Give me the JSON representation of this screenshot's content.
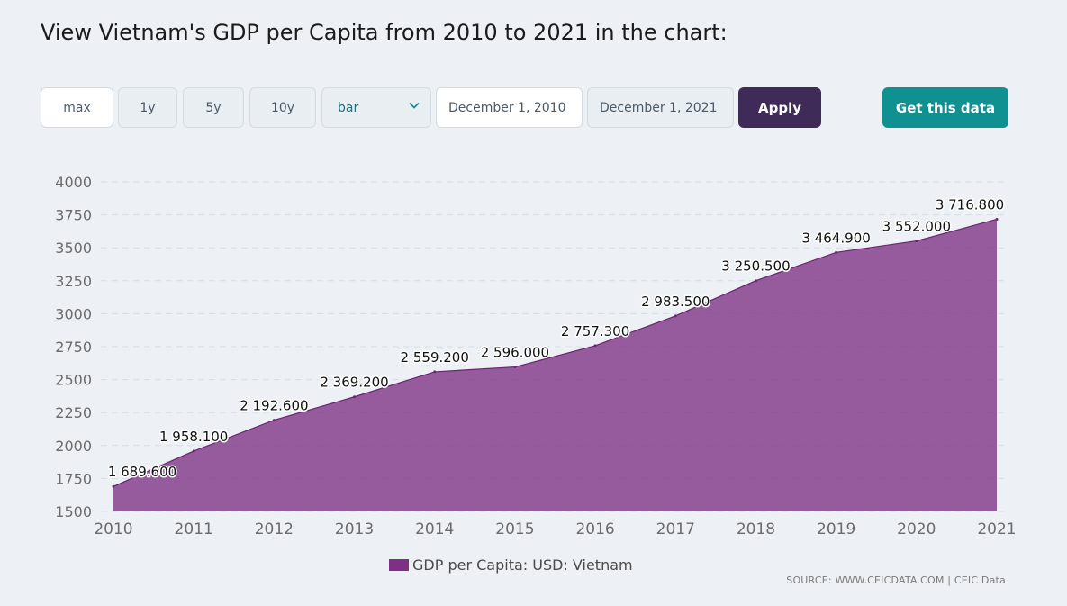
{
  "page": {
    "title": "View Vietnam's GDP per Capita from 2010 to 2021 in the chart:"
  },
  "controls": {
    "range_buttons": [
      "max",
      "1y",
      "5y",
      "10y"
    ],
    "chart_type_selected": "bar",
    "start_date": "December 1, 2010",
    "end_date": "December 1, 2021",
    "apply_label": "Apply",
    "get_data_label": "Get this data"
  },
  "colors": {
    "area_fill": "#7e3184",
    "apply_bg": "#3f2b57",
    "get_data_bg": "#0f9191",
    "page_bg": "#edf1f5"
  },
  "icons": {
    "select_arrow": "chevron-down-icon"
  },
  "chart_data": {
    "type": "area",
    "x": [
      "2010",
      "2011",
      "2012",
      "2013",
      "2014",
      "2015",
      "2016",
      "2017",
      "2018",
      "2019",
      "2020",
      "2021"
    ],
    "series": [
      {
        "name": "GDP per Capita: USD: Vietnam",
        "values": [
          1689.6,
          1958.1,
          2192.6,
          2369.2,
          2559.2,
          2596.0,
          2757.3,
          2983.5,
          3250.5,
          3464.9,
          3552.0,
          3716.8
        ],
        "labels": [
          "1 689.600",
          "1 958.100",
          "2 192.600",
          "2 369.200",
          "2 559.200",
          "2 596.000",
          "2 757.300",
          "2 983.500",
          "3 250.500",
          "3 464.900",
          "3 552.000",
          "3 716.800"
        ]
      }
    ],
    "ylim": [
      1500,
      4000
    ],
    "yticks": [
      1500,
      1750,
      2000,
      2250,
      2500,
      2750,
      3000,
      3250,
      3500,
      3750,
      4000
    ],
    "grid": true,
    "legend_placement": "bottom-center",
    "source": "SOURCE: WWW.CEICDATA.COM | CEIC Data"
  }
}
